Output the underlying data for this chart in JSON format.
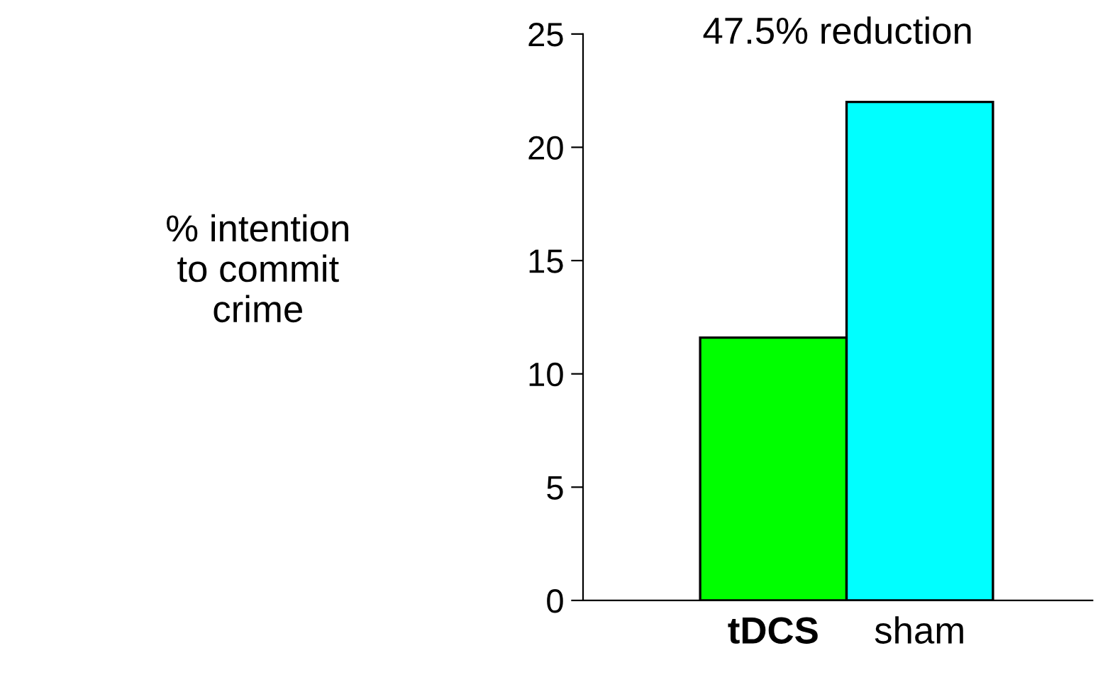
{
  "chart_data": {
    "type": "bar",
    "categories": [
      "tDCS",
      "sham"
    ],
    "values": [
      11.6,
      22.0
    ],
    "colors": [
      "#00ff00",
      "#00ffff"
    ],
    "ylabel": "% intention\nto commit\ncrime",
    "annotations": [
      "47.5% reduction"
    ],
    "ylim": [
      0,
      25
    ],
    "yticks": [
      0,
      5,
      10,
      15,
      20,
      25
    ],
    "grid": false,
    "legend": false
  }
}
